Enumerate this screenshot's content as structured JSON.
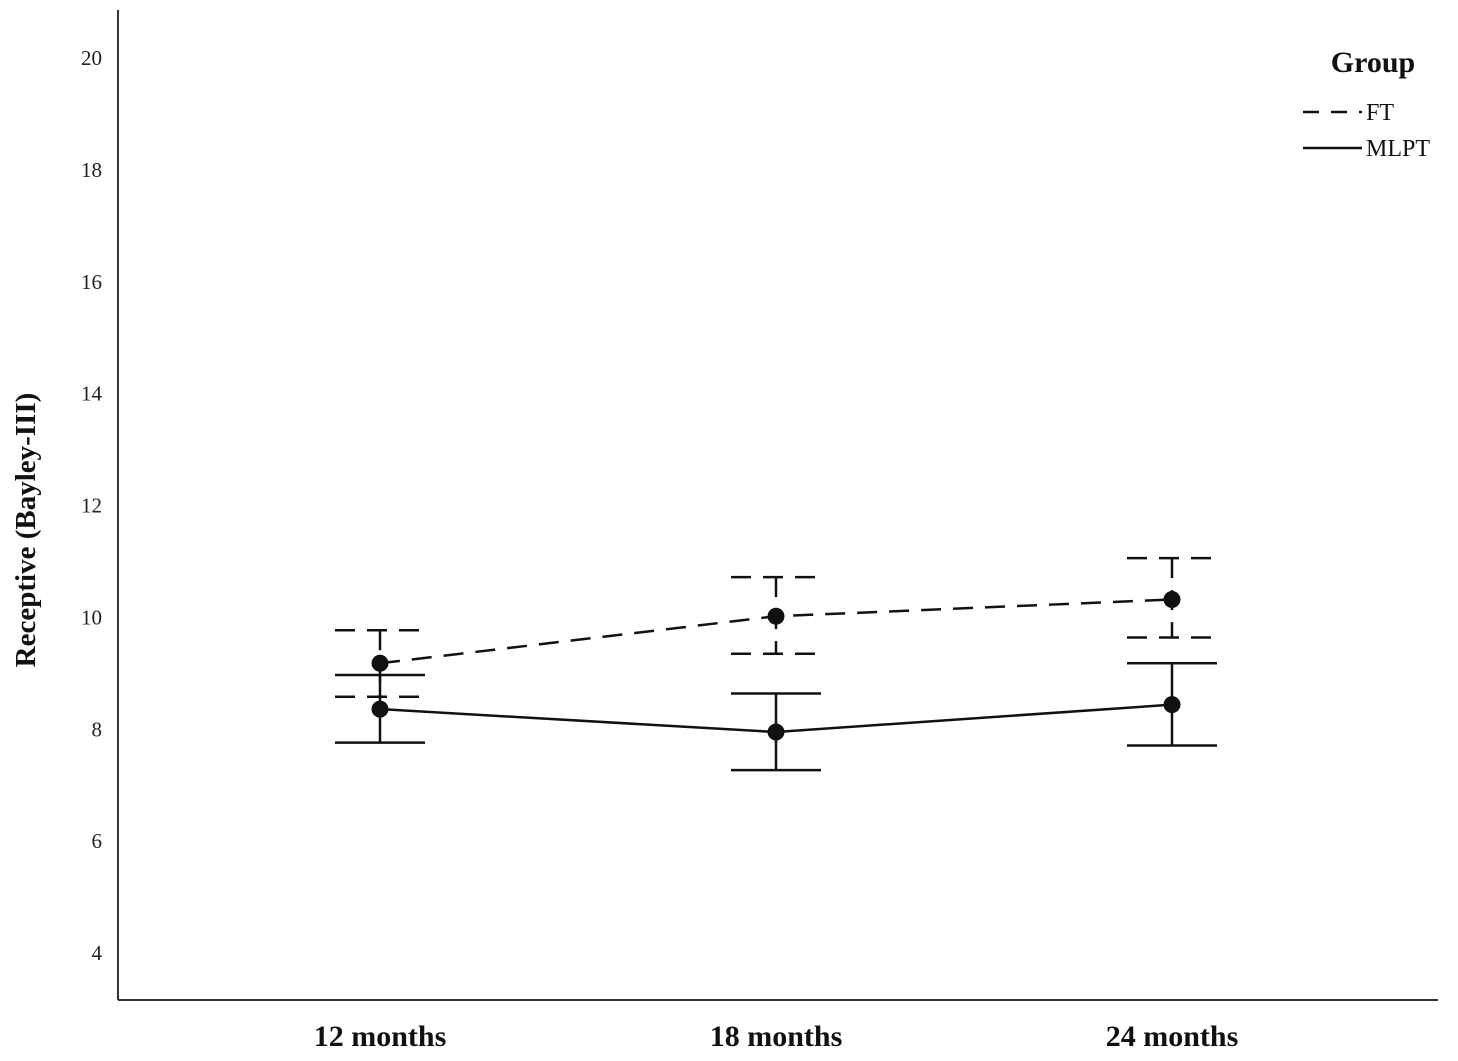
{
  "chart_data": {
    "type": "line",
    "ylabel": "Receptive (Bayley-III)",
    "xlabel": "",
    "categories": [
      "12 months",
      "18 months",
      "24 months"
    ],
    "ylim": [
      3.2,
      20.8
    ],
    "yticks": [
      4,
      6,
      8,
      10,
      12,
      14,
      16,
      18,
      20
    ],
    "grid": false,
    "legend": {
      "title": "Group",
      "placement": "top-right"
    },
    "series": [
      {
        "name": "FT",
        "line_style": "dashed",
        "values": [
          9.18,
          10.02,
          10.32
        ],
        "error_low": [
          8.58,
          9.35,
          9.64
        ],
        "error_high": [
          9.77,
          10.72,
          11.06
        ]
      },
      {
        "name": "MLPT",
        "line_style": "solid",
        "values": [
          8.36,
          7.95,
          8.44
        ],
        "error_low": [
          7.76,
          7.27,
          7.71
        ],
        "error_high": [
          8.97,
          8.64,
          9.18
        ]
      }
    ],
    "colors": {
      "line": "#111111",
      "axis": "#333333"
    }
  }
}
